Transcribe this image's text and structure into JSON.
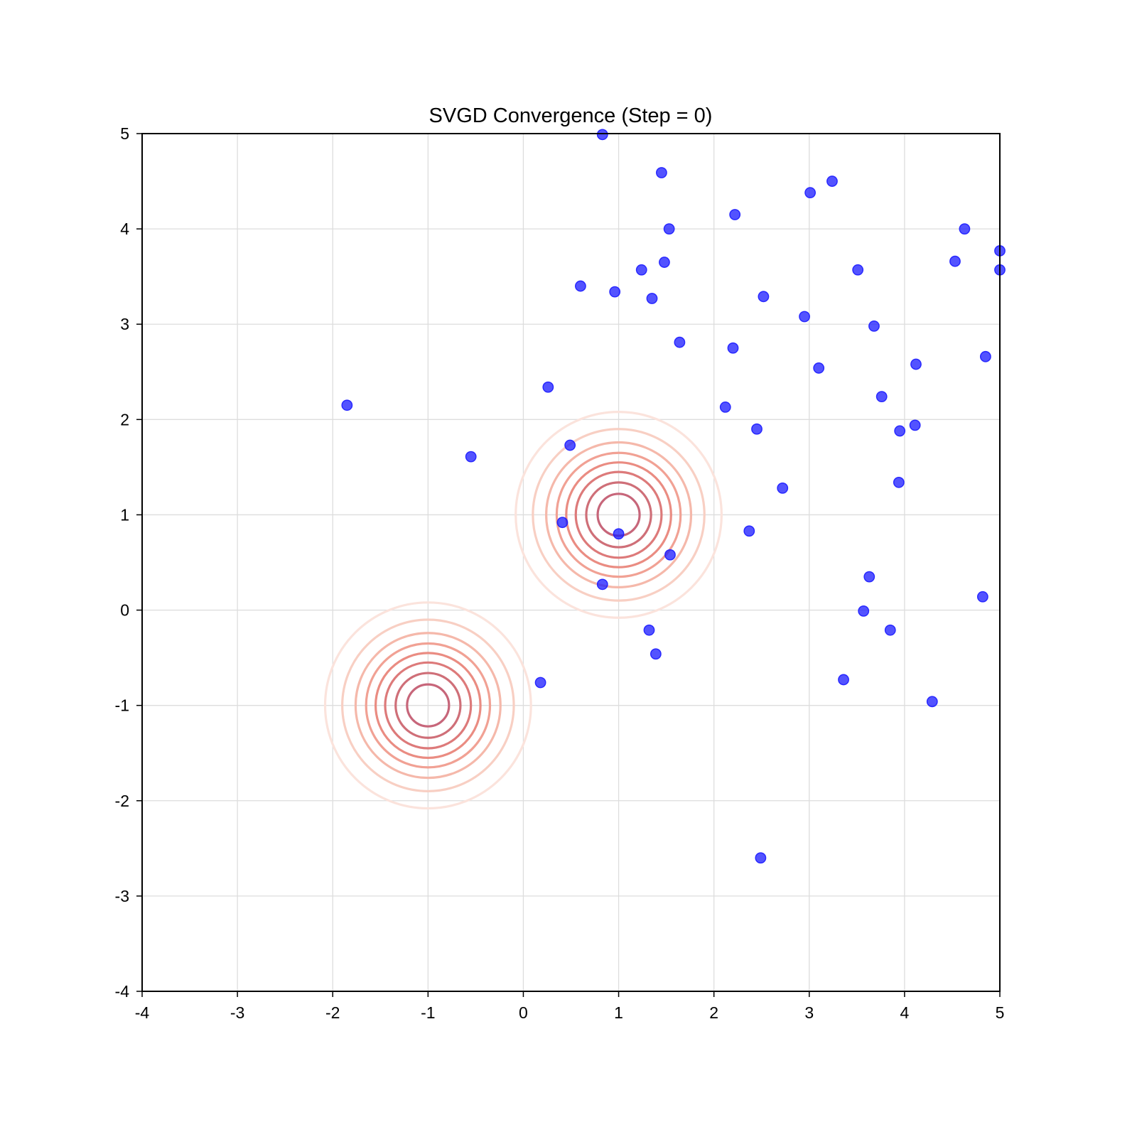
{
  "chart_data": {
    "type": "scatter",
    "title": "SVGD Convergence (Step = 0)",
    "xlabel": "",
    "ylabel": "",
    "xlim": [
      -4,
      5
    ],
    "ylim": [
      -4,
      5
    ],
    "xticks": [
      "-4",
      "-3",
      "-2",
      "-1",
      "0",
      "1",
      "2",
      "3",
      "4",
      "5"
    ],
    "yticks": [
      "-4",
      "-3",
      "-2",
      "-1",
      "0",
      "1",
      "2",
      "3",
      "4",
      "5"
    ],
    "grid": true,
    "legend": "none",
    "point_color": "#1a1aff",
    "contour_colors": [
      "#fbe3dc",
      "#f8cfc3",
      "#f5b8aa",
      "#f1a194",
      "#ea8c82",
      "#dd7a7a",
      "#cf6f78",
      "#c7667a"
    ],
    "density_components": [
      {
        "mean": [
          -1,
          -1
        ],
        "contour_radii": [
          1.08,
          0.9,
          0.76,
          0.65,
          0.55,
          0.45,
          0.34,
          0.22
        ]
      },
      {
        "mean": [
          1,
          1
        ],
        "contour_radii": [
          1.08,
          0.9,
          0.76,
          0.65,
          0.55,
          0.45,
          0.34,
          0.22
        ]
      }
    ],
    "points": [
      [
        0.83,
        4.99
      ],
      [
        1.45,
        4.59
      ],
      [
        3.24,
        4.5
      ],
      [
        3.01,
        4.38
      ],
      [
        2.22,
        4.15
      ],
      [
        1.53,
        4.0
      ],
      [
        4.63,
        4.0
      ],
      [
        5.0,
        3.77
      ],
      [
        1.48,
        3.65
      ],
      [
        4.53,
        3.66
      ],
      [
        1.24,
        3.57
      ],
      [
        3.51,
        3.57
      ],
      [
        5.0,
        3.57
      ],
      [
        0.6,
        3.4
      ],
      [
        0.96,
        3.34
      ],
      [
        1.35,
        3.27
      ],
      [
        2.52,
        3.29
      ],
      [
        2.95,
        3.08
      ],
      [
        3.68,
        2.98
      ],
      [
        1.64,
        2.81
      ],
      [
        2.2,
        2.75
      ],
      [
        4.85,
        2.66
      ],
      [
        4.12,
        2.58
      ],
      [
        3.1,
        2.54
      ],
      [
        0.26,
        2.34
      ],
      [
        3.76,
        2.24
      ],
      [
        -1.85,
        2.15
      ],
      [
        2.12,
        2.13
      ],
      [
        4.11,
        1.94
      ],
      [
        2.45,
        1.9
      ],
      [
        3.95,
        1.88
      ],
      [
        0.49,
        1.73
      ],
      [
        -0.55,
        1.61
      ],
      [
        3.94,
        1.34
      ],
      [
        2.72,
        1.28
      ],
      [
        0.41,
        0.92
      ],
      [
        1.0,
        0.8
      ],
      [
        2.37,
        0.83
      ],
      [
        1.54,
        0.58
      ],
      [
        3.63,
        0.35
      ],
      [
        0.83,
        0.27
      ],
      [
        4.82,
        0.14
      ],
      [
        3.57,
        -0.01
      ],
      [
        1.32,
        -0.21
      ],
      [
        3.85,
        -0.21
      ],
      [
        1.39,
        -0.46
      ],
      [
        0.18,
        -0.76
      ],
      [
        3.36,
        -0.73
      ],
      [
        4.29,
        -0.96
      ],
      [
        2.49,
        -2.6
      ]
    ]
  }
}
